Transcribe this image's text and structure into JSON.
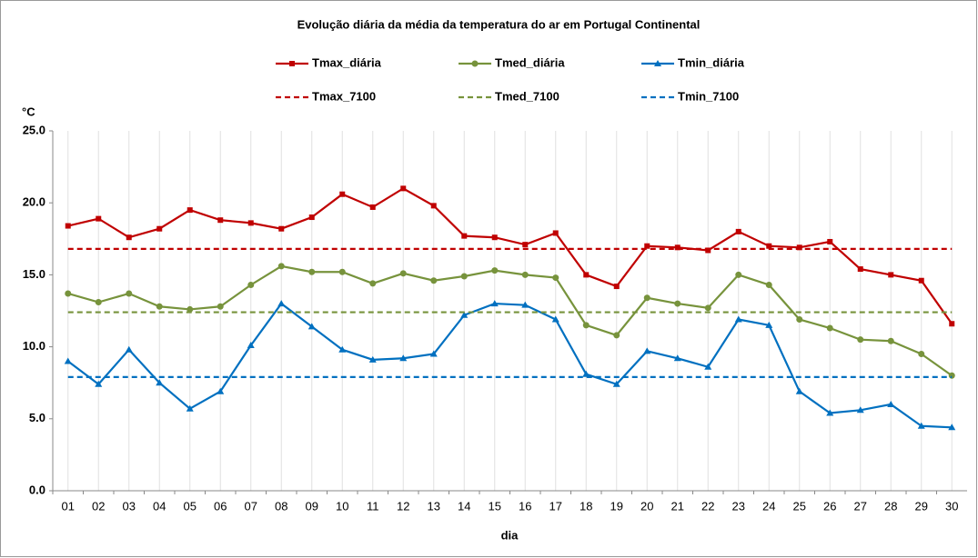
{
  "chart_data": {
    "type": "line",
    "title": "Evolução diária da média da temperatura do ar em Portugal Continental",
    "y_label": "°C",
    "x_label": "dia",
    "categories": [
      "01",
      "02",
      "03",
      "04",
      "05",
      "06",
      "07",
      "08",
      "09",
      "10",
      "11",
      "12",
      "13",
      "14",
      "15",
      "16",
      "17",
      "18",
      "19",
      "20",
      "21",
      "22",
      "23",
      "24",
      "25",
      "26",
      "27",
      "28",
      "29",
      "30"
    ],
    "series": [
      {
        "name": "Tmax_diária",
        "color": "#c00000",
        "marker": "square",
        "dash": false,
        "values": [
          18.4,
          18.9,
          17.6,
          18.2,
          19.5,
          18.8,
          18.6,
          18.2,
          19.0,
          20.6,
          19.7,
          21.0,
          19.8,
          17.7,
          17.6,
          17.1,
          17.9,
          15.0,
          14.2,
          17.0,
          16.9,
          16.7,
          18.0,
          17.0,
          16.9,
          17.3,
          15.4,
          15.0,
          14.6,
          11.6
        ]
      },
      {
        "name": "Tmed_diária",
        "color": "#77933c",
        "marker": "circle",
        "dash": false,
        "values": [
          13.7,
          13.1,
          13.7,
          12.8,
          12.6,
          12.8,
          14.3,
          15.6,
          15.2,
          15.2,
          14.4,
          15.1,
          14.6,
          14.9,
          15.3,
          15.0,
          14.8,
          11.5,
          10.8,
          13.4,
          13.0,
          12.7,
          15.0,
          14.3,
          11.9,
          11.3,
          10.5,
          10.4,
          9.5,
          8.0
        ]
      },
      {
        "name": "Tmin_diária",
        "color": "#0070c0",
        "marker": "triangle",
        "dash": false,
        "values": [
          9.0,
          7.4,
          9.8,
          7.5,
          5.7,
          6.9,
          10.1,
          13.0,
          11.4,
          9.8,
          9.1,
          9.2,
          9.5,
          12.2,
          13.0,
          12.9,
          11.9,
          8.1,
          7.4,
          9.7,
          9.2,
          8.6,
          11.9,
          11.5,
          6.9,
          5.4,
          5.6,
          6.0,
          4.5,
          4.4
        ]
      },
      {
        "name": "Tmax_7100",
        "color": "#c00000",
        "marker": "none",
        "dash": true,
        "values": [
          16.8,
          16.8,
          16.8,
          16.8,
          16.8,
          16.8,
          16.8,
          16.8,
          16.8,
          16.8,
          16.8,
          16.8,
          16.8,
          16.8,
          16.8,
          16.8,
          16.8,
          16.8,
          16.8,
          16.8,
          16.8,
          16.8,
          16.8,
          16.8,
          16.8,
          16.8,
          16.8,
          16.8,
          16.8,
          16.8
        ]
      },
      {
        "name": "Tmed_7100",
        "color": "#77933c",
        "marker": "none",
        "dash": true,
        "values": [
          12.4,
          12.4,
          12.4,
          12.4,
          12.4,
          12.4,
          12.4,
          12.4,
          12.4,
          12.4,
          12.4,
          12.4,
          12.4,
          12.4,
          12.4,
          12.4,
          12.4,
          12.4,
          12.4,
          12.4,
          12.4,
          12.4,
          12.4,
          12.4,
          12.4,
          12.4,
          12.4,
          12.4,
          12.4,
          12.4
        ]
      },
      {
        "name": "Tmin_7100",
        "color": "#0070c0",
        "marker": "none",
        "dash": true,
        "values": [
          7.9,
          7.9,
          7.9,
          7.9,
          7.9,
          7.9,
          7.9,
          7.9,
          7.9,
          7.9,
          7.9,
          7.9,
          7.9,
          7.9,
          7.9,
          7.9,
          7.9,
          7.9,
          7.9,
          7.9,
          7.9,
          7.9,
          7.9,
          7.9,
          7.9,
          7.9,
          7.9,
          7.9,
          7.9,
          7.9
        ]
      }
    ],
    "ylim": [
      0,
      25
    ],
    "yticks": [
      {
        "value": 0,
        "label": "0.0"
      },
      {
        "value": 5,
        "label": "5.0"
      },
      {
        "value": 10,
        "label": "10.0"
      },
      {
        "value": 15,
        "label": "15.0"
      },
      {
        "value": 20,
        "label": "20.0"
      },
      {
        "value": 25,
        "label": "25.0"
      }
    ],
    "grid": true,
    "legend": "top"
  }
}
